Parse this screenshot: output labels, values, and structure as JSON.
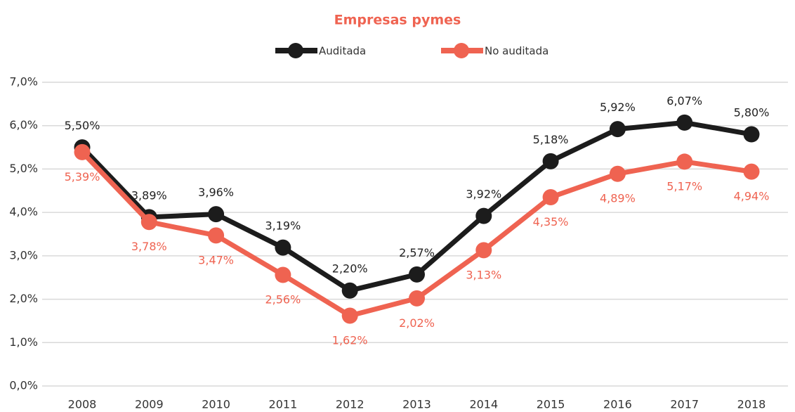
{
  "chart_data": {
    "type": "line",
    "title": "Empresas pymes",
    "categories": [
      "2008",
      "2009",
      "2010",
      "2011",
      "2012",
      "2013",
      "2014",
      "2015",
      "2016",
      "2017",
      "2018"
    ],
    "series": [
      {
        "name": "Auditada",
        "color": "#1c1c1c",
        "values": [
          5.5,
          3.89,
          3.96,
          3.19,
          2.2,
          2.57,
          3.92,
          5.18,
          5.92,
          6.07,
          5.8
        ],
        "value_labels": [
          "5,50%",
          "3,89%",
          "3,96%",
          "3,19%",
          "2,20%",
          "2,57%",
          "3,92%",
          "5,18%",
          "5,92%",
          "6,07%",
          "5,80%"
        ]
      },
      {
        "name": "No auditada",
        "color": "#ef6351",
        "values": [
          5.39,
          3.78,
          3.47,
          2.56,
          1.62,
          2.02,
          3.13,
          4.35,
          4.89,
          5.17,
          4.94
        ],
        "value_labels": [
          "5,39%",
          "3,78%",
          "3,47%",
          "2,56%",
          "1,62%",
          "2,02%",
          "3,13%",
          "4,35%",
          "4,89%",
          "5,17%",
          "4,94%"
        ]
      }
    ],
    "ylim": [
      0,
      7
    ],
    "yticks": [
      {
        "value": 0,
        "label": "0,0%"
      },
      {
        "value": 1,
        "label": "1,0%"
      },
      {
        "value": 2,
        "label": "2,0%"
      },
      {
        "value": 3,
        "label": "3,0%"
      },
      {
        "value": 4,
        "label": "4,0%"
      },
      {
        "value": 5,
        "label": "5,0%"
      },
      {
        "value": 6,
        "label": "6,0%"
      },
      {
        "value": 7,
        "label": "7,0%"
      }
    ],
    "grid": true,
    "legend": "top"
  }
}
